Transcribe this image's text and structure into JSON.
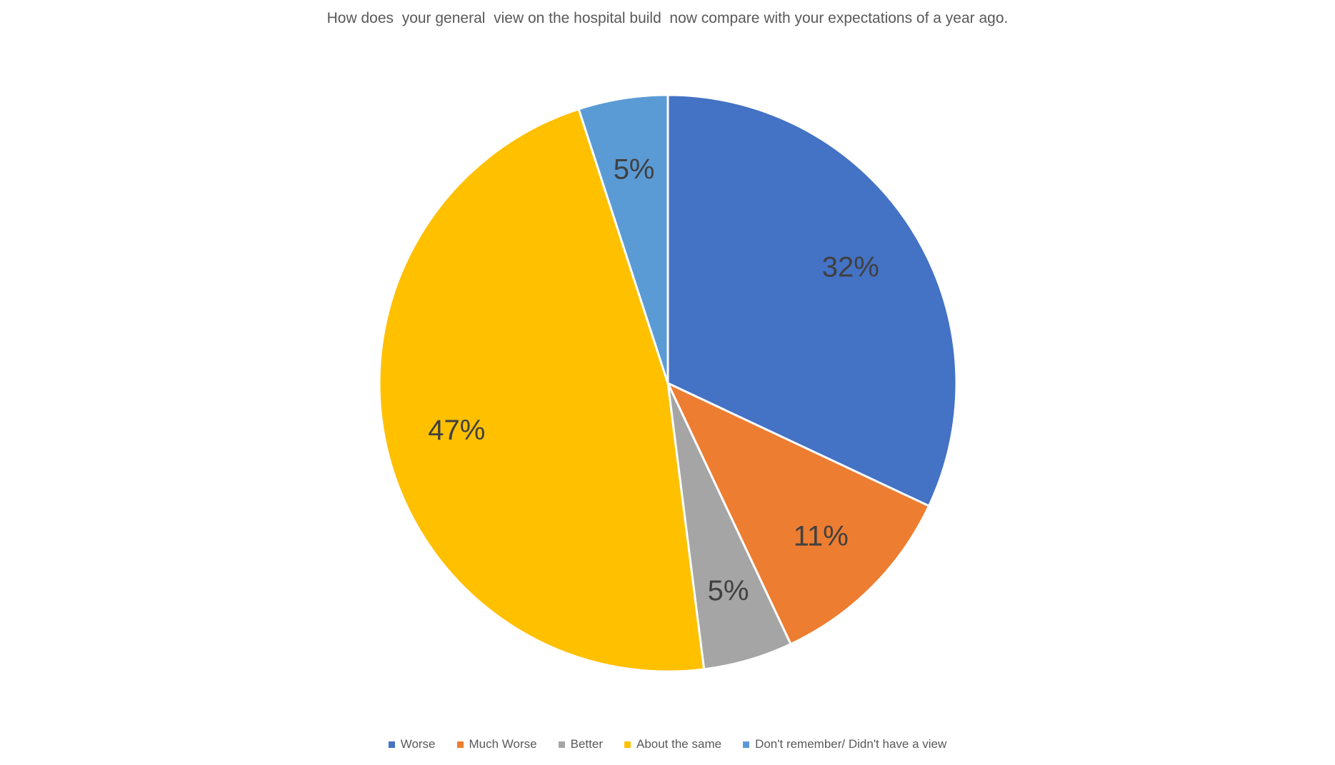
{
  "chart_data": {
    "type": "pie",
    "title": "How does  your general  view on the hospital build  now compare with your expectations of a year ago.",
    "categories": [
      "Worse",
      "Much Worse",
      "Better",
      "About the same",
      "Don't remember/ Didn't have a view"
    ],
    "values": [
      32,
      11,
      5,
      47,
      5
    ],
    "data_labels": [
      "32%",
      "11%",
      "5%",
      "47%",
      "5%"
    ],
    "colors": [
      "#4472C4",
      "#ED7D31",
      "#A5A5A5",
      "#FFC000",
      "#5B9BD5"
    ],
    "start_angle_deg": 0,
    "direction": "clockwise",
    "legend_position": "bottom"
  }
}
